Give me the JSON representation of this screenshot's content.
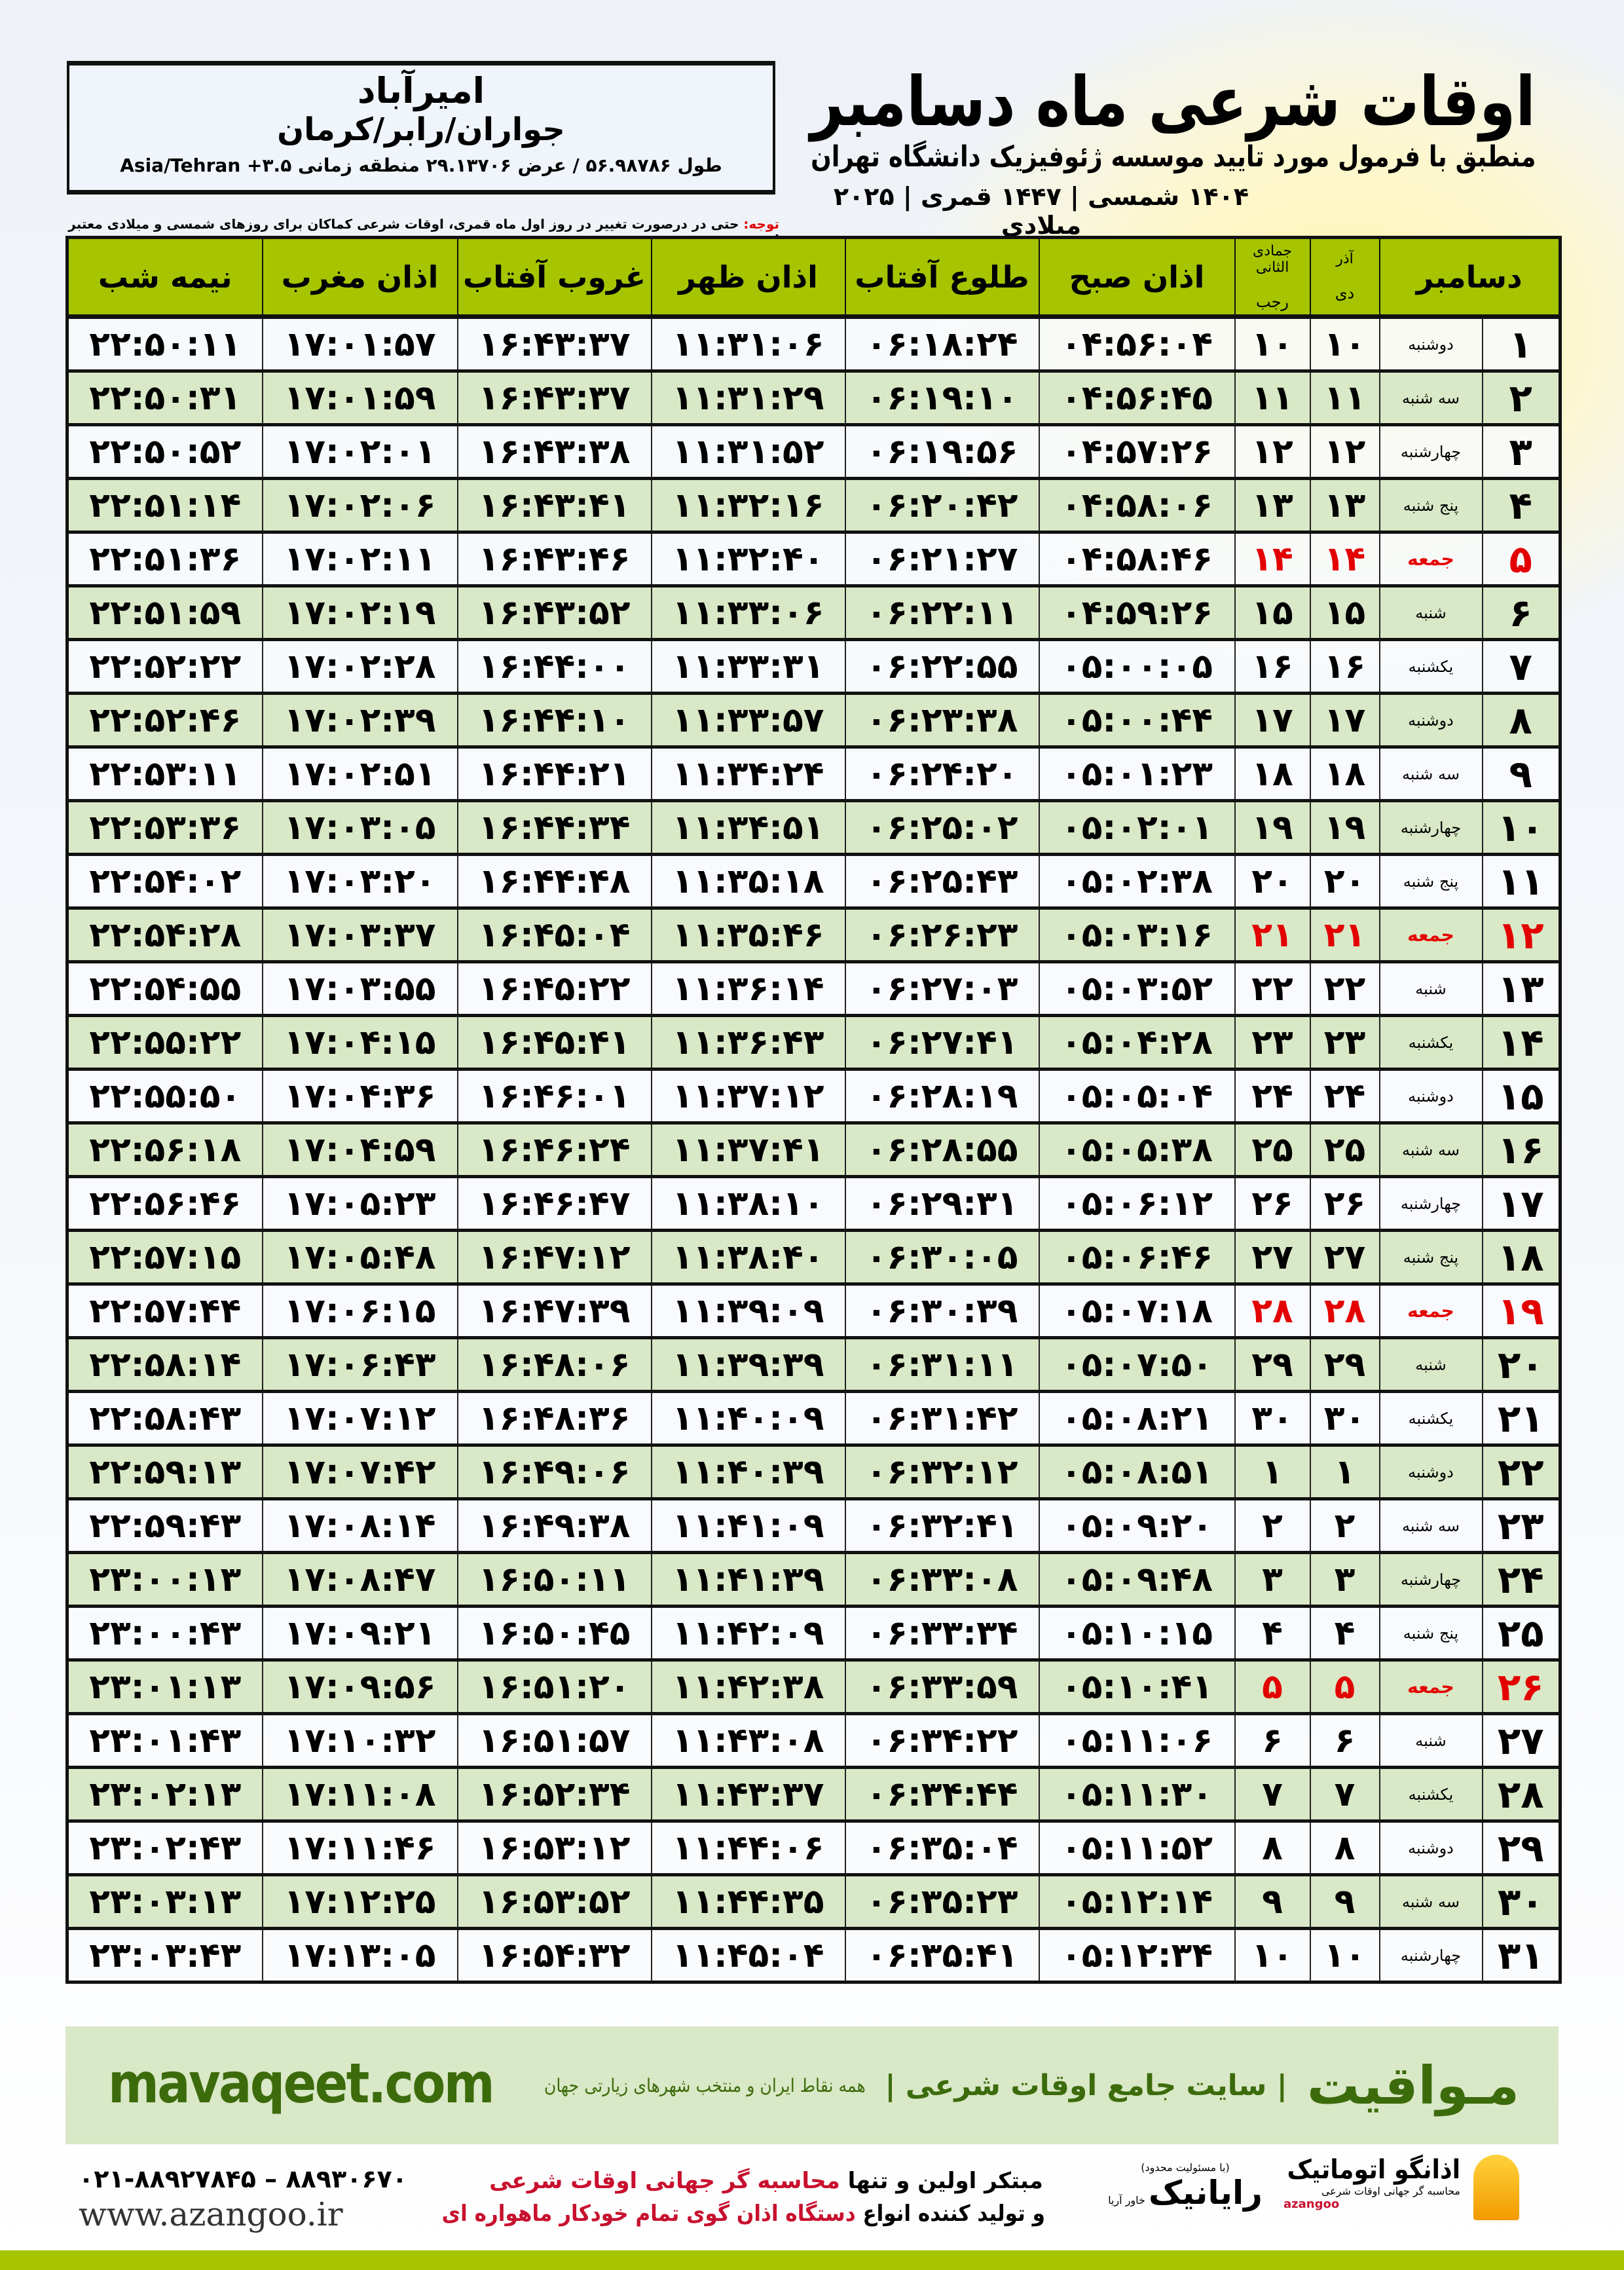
{
  "location": {
    "city": "امیرآباد",
    "region": "جواران/رابر/کرمان",
    "coords": "طول ۵۶.۹۸۷۸۶ / عرض ۲۹.۱۳۷۰۶ منطقه زمانی ۳.۵+ Asia/Tehran"
  },
  "header": {
    "title": "اوقات شرعی ماه دسامبر",
    "subtitle": "منطبق با فرمول مورد تایید موسسه ژئوفیزیک دانشگاه تهران",
    "dateline": "۱۴۰۴ شمسی | ۱۴۴۷ قمری | ۲۰۲۵ میلادی"
  },
  "note": {
    "label": "توجه:",
    "text": " حتی در درصورت تغییر در روز اول ماه قمری، اوقات شرعی کماکان برای روزهای شمسی و میلادی معتبر است."
  },
  "colors": {
    "header_green": "#a6c400",
    "row_green": "#d9e8c6",
    "holiday_red": "#e30000",
    "brand_green": "#3c6b0c"
  },
  "columns": {
    "day": "دسامبر",
    "shamsi_top": "آذر",
    "shamsi_bottom": "دی",
    "qamari_top": "جمادی الثانی",
    "qamari_bottom": "رجب",
    "sobh": "اذان صبح",
    "tolu": "طلوع آفتاب",
    "zohr": "اذان ظهر",
    "ghorub": "غروب آفتاب",
    "maghreb": "اذان مغرب",
    "nimeh": "نیمه شب"
  },
  "rows": [
    {
      "day": "۱",
      "weekday": "دوشنبه",
      "shamsi": "۱۰",
      "qamari": "۱۰",
      "sobh": "۰۴:۵۶:۰۴",
      "tolu": "۰۶:۱۸:۲۴",
      "zohr": "۱۱:۳۱:۰۶",
      "ghorub": "۱۶:۴۳:۳۷",
      "maghreb": "۱۷:۰۱:۵۷",
      "nimeh": "۲۲:۵۰:۱۱",
      "holiday": false
    },
    {
      "day": "۲",
      "weekday": "سه شنبه",
      "shamsi": "۱۱",
      "qamari": "۱۱",
      "sobh": "۰۴:۵۶:۴۵",
      "tolu": "۰۶:۱۹:۱۰",
      "zohr": "۱۱:۳۱:۲۹",
      "ghorub": "۱۶:۴۳:۳۷",
      "maghreb": "۱۷:۰۱:۵۹",
      "nimeh": "۲۲:۵۰:۳۱",
      "holiday": false
    },
    {
      "day": "۳",
      "weekday": "چهارشنبه",
      "shamsi": "۱۲",
      "qamari": "۱۲",
      "sobh": "۰۴:۵۷:۲۶",
      "tolu": "۰۶:۱۹:۵۶",
      "zohr": "۱۱:۳۱:۵۲",
      "ghorub": "۱۶:۴۳:۳۸",
      "maghreb": "۱۷:۰۲:۰۱",
      "nimeh": "۲۲:۵۰:۵۲",
      "holiday": false
    },
    {
      "day": "۴",
      "weekday": "پنج شنبه",
      "shamsi": "۱۳",
      "qamari": "۱۳",
      "sobh": "۰۴:۵۸:۰۶",
      "tolu": "۰۶:۲۰:۴۲",
      "zohr": "۱۱:۳۲:۱۶",
      "ghorub": "۱۶:۴۳:۴۱",
      "maghreb": "۱۷:۰۲:۰۶",
      "nimeh": "۲۲:۵۱:۱۴",
      "holiday": false
    },
    {
      "day": "۵",
      "weekday": "جمعه",
      "shamsi": "۱۴",
      "qamari": "۱۴",
      "sobh": "۰۴:۵۸:۴۶",
      "tolu": "۰۶:۲۱:۲۷",
      "zohr": "۱۱:۳۲:۴۰",
      "ghorub": "۱۶:۴۳:۴۶",
      "maghreb": "۱۷:۰۲:۱۱",
      "nimeh": "۲۲:۵۱:۳۶",
      "holiday": true
    },
    {
      "day": "۶",
      "weekday": "شنبه",
      "shamsi": "۱۵",
      "qamari": "۱۵",
      "sobh": "۰۴:۵۹:۲۶",
      "tolu": "۰۶:۲۲:۱۱",
      "zohr": "۱۱:۳۳:۰۶",
      "ghorub": "۱۶:۴۳:۵۲",
      "maghreb": "۱۷:۰۲:۱۹",
      "nimeh": "۲۲:۵۱:۵۹",
      "holiday": false
    },
    {
      "day": "۷",
      "weekday": "یکشنبه",
      "shamsi": "۱۶",
      "qamari": "۱۶",
      "sobh": "۰۵:۰۰:۰۵",
      "tolu": "۰۶:۲۲:۵۵",
      "zohr": "۱۱:۳۳:۳۱",
      "ghorub": "۱۶:۴۴:۰۰",
      "maghreb": "۱۷:۰۲:۲۸",
      "nimeh": "۲۲:۵۲:۲۲",
      "holiday": false
    },
    {
      "day": "۸",
      "weekday": "دوشنبه",
      "shamsi": "۱۷",
      "qamari": "۱۷",
      "sobh": "۰۵:۰۰:۴۴",
      "tolu": "۰۶:۲۳:۳۸",
      "zohr": "۱۱:۳۳:۵۷",
      "ghorub": "۱۶:۴۴:۱۰",
      "maghreb": "۱۷:۰۲:۳۹",
      "nimeh": "۲۲:۵۲:۴۶",
      "holiday": false
    },
    {
      "day": "۹",
      "weekday": "سه شنبه",
      "shamsi": "۱۸",
      "qamari": "۱۸",
      "sobh": "۰۵:۰۱:۲۳",
      "tolu": "۰۶:۲۴:۲۰",
      "zohr": "۱۱:۳۴:۲۴",
      "ghorub": "۱۶:۴۴:۲۱",
      "maghreb": "۱۷:۰۲:۵۱",
      "nimeh": "۲۲:۵۳:۱۱",
      "holiday": false
    },
    {
      "day": "۱۰",
      "weekday": "چهارشنبه",
      "shamsi": "۱۹",
      "qamari": "۱۹",
      "sobh": "۰۵:۰۲:۰۱",
      "tolu": "۰۶:۲۵:۰۲",
      "zohr": "۱۱:۳۴:۵۱",
      "ghorub": "۱۶:۴۴:۳۴",
      "maghreb": "۱۷:۰۳:۰۵",
      "nimeh": "۲۲:۵۳:۳۶",
      "holiday": false
    },
    {
      "day": "۱۱",
      "weekday": "پنج شنبه",
      "shamsi": "۲۰",
      "qamari": "۲۰",
      "sobh": "۰۵:۰۲:۳۸",
      "tolu": "۰۶:۲۵:۴۳",
      "zohr": "۱۱:۳۵:۱۸",
      "ghorub": "۱۶:۴۴:۴۸",
      "maghreb": "۱۷:۰۳:۲۰",
      "nimeh": "۲۲:۵۴:۰۲",
      "holiday": false
    },
    {
      "day": "۱۲",
      "weekday": "جمعه",
      "shamsi": "۲۱",
      "qamari": "۲۱",
      "sobh": "۰۵:۰۳:۱۶",
      "tolu": "۰۶:۲۶:۲۳",
      "zohr": "۱۱:۳۵:۴۶",
      "ghorub": "۱۶:۴۵:۰۴",
      "maghreb": "۱۷:۰۳:۳۷",
      "nimeh": "۲۲:۵۴:۲۸",
      "holiday": true
    },
    {
      "day": "۱۳",
      "weekday": "شنبه",
      "shamsi": "۲۲",
      "qamari": "۲۲",
      "sobh": "۰۵:۰۳:۵۲",
      "tolu": "۰۶:۲۷:۰۳",
      "zohr": "۱۱:۳۶:۱۴",
      "ghorub": "۱۶:۴۵:۲۲",
      "maghreb": "۱۷:۰۳:۵۵",
      "nimeh": "۲۲:۵۴:۵۵",
      "holiday": false
    },
    {
      "day": "۱۴",
      "weekday": "یکشنبه",
      "shamsi": "۲۳",
      "qamari": "۲۳",
      "sobh": "۰۵:۰۴:۲۸",
      "tolu": "۰۶:۲۷:۴۱",
      "zohr": "۱۱:۳۶:۴۳",
      "ghorub": "۱۶:۴۵:۴۱",
      "maghreb": "۱۷:۰۴:۱۵",
      "nimeh": "۲۲:۵۵:۲۲",
      "holiday": false
    },
    {
      "day": "۱۵",
      "weekday": "دوشنبه",
      "shamsi": "۲۴",
      "qamari": "۲۴",
      "sobh": "۰۵:۰۵:۰۴",
      "tolu": "۰۶:۲۸:۱۹",
      "zohr": "۱۱:۳۷:۱۲",
      "ghorub": "۱۶:۴۶:۰۱",
      "maghreb": "۱۷:۰۴:۳۶",
      "nimeh": "۲۲:۵۵:۵۰",
      "holiday": false
    },
    {
      "day": "۱۶",
      "weekday": "سه شنبه",
      "shamsi": "۲۵",
      "qamari": "۲۵",
      "sobh": "۰۵:۰۵:۳۸",
      "tolu": "۰۶:۲۸:۵۵",
      "zohr": "۱۱:۳۷:۴۱",
      "ghorub": "۱۶:۴۶:۲۴",
      "maghreb": "۱۷:۰۴:۵۹",
      "nimeh": "۲۲:۵۶:۱۸",
      "holiday": false
    },
    {
      "day": "۱۷",
      "weekday": "چهارشنبه",
      "shamsi": "۲۶",
      "qamari": "۲۶",
      "sobh": "۰۵:۰۶:۱۲",
      "tolu": "۰۶:۲۹:۳۱",
      "zohr": "۱۱:۳۸:۱۰",
      "ghorub": "۱۶:۴۶:۴۷",
      "maghreb": "۱۷:۰۵:۲۳",
      "nimeh": "۲۲:۵۶:۴۶",
      "holiday": false
    },
    {
      "day": "۱۸",
      "weekday": "پنج شنبه",
      "shamsi": "۲۷",
      "qamari": "۲۷",
      "sobh": "۰۵:۰۶:۴۶",
      "tolu": "۰۶:۳۰:۰۵",
      "zohr": "۱۱:۳۸:۴۰",
      "ghorub": "۱۶:۴۷:۱۲",
      "maghreb": "۱۷:۰۵:۴۸",
      "nimeh": "۲۲:۵۷:۱۵",
      "holiday": false
    },
    {
      "day": "۱۹",
      "weekday": "جمعه",
      "shamsi": "۲۸",
      "qamari": "۲۸",
      "sobh": "۰۵:۰۷:۱۸",
      "tolu": "۰۶:۳۰:۳۹",
      "zohr": "۱۱:۳۹:۰۹",
      "ghorub": "۱۶:۴۷:۳۹",
      "maghreb": "۱۷:۰۶:۱۵",
      "nimeh": "۲۲:۵۷:۴۴",
      "holiday": true
    },
    {
      "day": "۲۰",
      "weekday": "شنبه",
      "shamsi": "۲۹",
      "qamari": "۲۹",
      "sobh": "۰۵:۰۷:۵۰",
      "tolu": "۰۶:۳۱:۱۱",
      "zohr": "۱۱:۳۹:۳۹",
      "ghorub": "۱۶:۴۸:۰۶",
      "maghreb": "۱۷:۰۶:۴۳",
      "nimeh": "۲۲:۵۸:۱۴",
      "holiday": false
    },
    {
      "day": "۲۱",
      "weekday": "یکشنبه",
      "shamsi": "۳۰",
      "qamari": "۳۰",
      "sobh": "۰۵:۰۸:۲۱",
      "tolu": "۰۶:۳۱:۴۲",
      "zohr": "۱۱:۴۰:۰۹",
      "ghorub": "۱۶:۴۸:۳۶",
      "maghreb": "۱۷:۰۷:۱۲",
      "nimeh": "۲۲:۵۸:۴۳",
      "holiday": false
    },
    {
      "day": "۲۲",
      "weekday": "دوشنبه",
      "shamsi": "۱",
      "qamari": "۱",
      "sobh": "۰۵:۰۸:۵۱",
      "tolu": "۰۶:۳۲:۱۲",
      "zohr": "۱۱:۴۰:۳۹",
      "ghorub": "۱۶:۴۹:۰۶",
      "maghreb": "۱۷:۰۷:۴۲",
      "nimeh": "۲۲:۵۹:۱۳",
      "holiday": false
    },
    {
      "day": "۲۳",
      "weekday": "سه شنبه",
      "shamsi": "۲",
      "qamari": "۲",
      "sobh": "۰۵:۰۹:۲۰",
      "tolu": "۰۶:۳۲:۴۱",
      "zohr": "۱۱:۴۱:۰۹",
      "ghorub": "۱۶:۴۹:۳۸",
      "maghreb": "۱۷:۰۸:۱۴",
      "nimeh": "۲۲:۵۹:۴۳",
      "holiday": false
    },
    {
      "day": "۲۴",
      "weekday": "چهارشنبه",
      "shamsi": "۳",
      "qamari": "۳",
      "sobh": "۰۵:۰۹:۴۸",
      "tolu": "۰۶:۳۳:۰۸",
      "zohr": "۱۱:۴۱:۳۹",
      "ghorub": "۱۶:۵۰:۱۱",
      "maghreb": "۱۷:۰۸:۴۷",
      "nimeh": "۲۳:۰۰:۱۳",
      "holiday": false
    },
    {
      "day": "۲۵",
      "weekday": "پنج شنبه",
      "shamsi": "۴",
      "qamari": "۴",
      "sobh": "۰۵:۱۰:۱۵",
      "tolu": "۰۶:۳۳:۳۴",
      "zohr": "۱۱:۴۲:۰۹",
      "ghorub": "۱۶:۵۰:۴۵",
      "maghreb": "۱۷:۰۹:۲۱",
      "nimeh": "۲۳:۰۰:۴۳",
      "holiday": false
    },
    {
      "day": "۲۶",
      "weekday": "جمعه",
      "shamsi": "۵",
      "qamari": "۵",
      "sobh": "۰۵:۱۰:۴۱",
      "tolu": "۰۶:۳۳:۵۹",
      "zohr": "۱۱:۴۲:۳۸",
      "ghorub": "۱۶:۵۱:۲۰",
      "maghreb": "۱۷:۰۹:۵۶",
      "nimeh": "۲۳:۰۱:۱۳",
      "holiday": true
    },
    {
      "day": "۲۷",
      "weekday": "شنبه",
      "shamsi": "۶",
      "qamari": "۶",
      "sobh": "۰۵:۱۱:۰۶",
      "tolu": "۰۶:۳۴:۲۲",
      "zohr": "۱۱:۴۳:۰۸",
      "ghorub": "۱۶:۵۱:۵۷",
      "maghreb": "۱۷:۱۰:۳۲",
      "nimeh": "۲۳:۰۱:۴۳",
      "holiday": false
    },
    {
      "day": "۲۸",
      "weekday": "یکشنبه",
      "shamsi": "۷",
      "qamari": "۷",
      "sobh": "۰۵:۱۱:۳۰",
      "tolu": "۰۶:۳۴:۴۴",
      "zohr": "۱۱:۴۳:۳۷",
      "ghorub": "۱۶:۵۲:۳۴",
      "maghreb": "۱۷:۱۱:۰۸",
      "nimeh": "۲۳:۰۲:۱۳",
      "holiday": false
    },
    {
      "day": "۲۹",
      "weekday": "دوشنبه",
      "shamsi": "۸",
      "qamari": "۸",
      "sobh": "۰۵:۱۱:۵۲",
      "tolu": "۰۶:۳۵:۰۴",
      "zohr": "۱۱:۴۴:۰۶",
      "ghorub": "۱۶:۵۳:۱۲",
      "maghreb": "۱۷:۱۱:۴۶",
      "nimeh": "۲۳:۰۲:۴۳",
      "holiday": false
    },
    {
      "day": "۳۰",
      "weekday": "سه شنبه",
      "shamsi": "۹",
      "qamari": "۹",
      "sobh": "۰۵:۱۲:۱۴",
      "tolu": "۰۶:۳۵:۲۳",
      "zohr": "۱۱:۴۴:۳۵",
      "ghorub": "۱۶:۵۳:۵۲",
      "maghreb": "۱۷:۱۲:۲۵",
      "nimeh": "۲۳:۰۳:۱۳",
      "holiday": false
    },
    {
      "day": "۳۱",
      "weekday": "چهارشنبه",
      "shamsi": "۱۰",
      "qamari": "۱۰",
      "sobh": "۰۵:۱۲:۳۴",
      "tolu": "۰۶:۳۵:۴۱",
      "zohr": "۱۱:۴۵:۰۴",
      "ghorub": "۱۶:۵۴:۳۲",
      "maghreb": "۱۷:۱۳:۰۵",
      "nimeh": "۲۳:۰۳:۴۳",
      "holiday": false
    }
  ],
  "footer": {
    "brand": "مـواقیت",
    "slogan": "| سایت جامع اوقات شرعی |",
    "slogan2": "همه نقاط ایران و منتخب شهرهای زیارتی جهان",
    "site": "mavaqeet.com",
    "phone": "۰۲۱-۸۸۹۲۷۸۴۵ – ۸۸۹۳۰۶۷۰",
    "web": "www.azangoo.ir",
    "promo_line1_a": "مبتکر اولین و تنها ",
    "promo_line1_b": "محاسبه گر جهانی اوقات شرعی",
    "promo_line2_a": "و تولید کننده انواع ",
    "promo_line2_b": "دستگاه اذان گوی تمام خودکار ماهواره ای",
    "rayanik_small": "(با مسئولیت محدود)",
    "rayanik_name": "رایانیک",
    "rayanik_sub": "خاور آریا",
    "azangoo_name": "اذانگو اتوماتیک",
    "azangoo_tag": "محاسبه گر جهانی اوقات شرعی",
    "azangoo_en": "azangoo"
  }
}
